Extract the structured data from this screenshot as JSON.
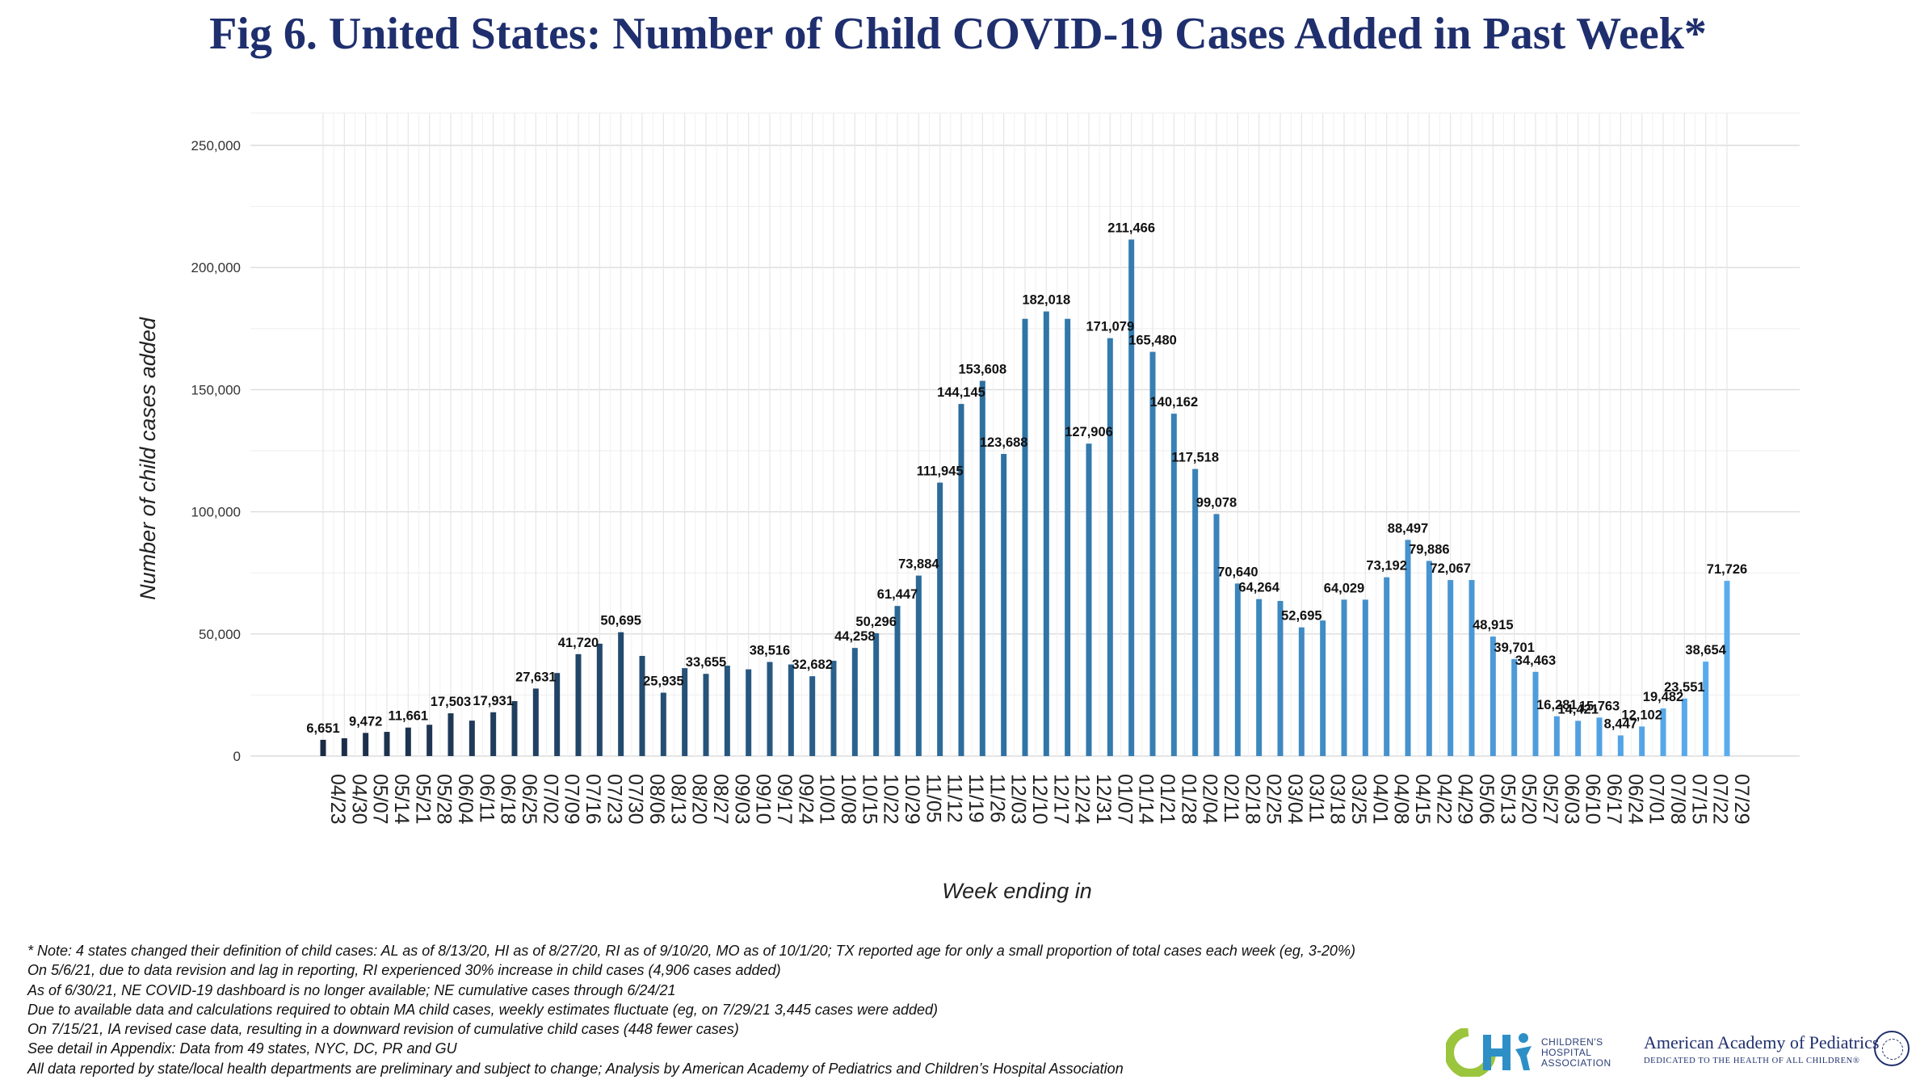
{
  "title": "Fig 6. United States: Number of Child COVID-19 Cases Added in Past Week*",
  "chart_data": {
    "type": "bar",
    "xlabel": "Week ending in",
    "ylabel": "Number of child cases added",
    "ylim": [
      0,
      250000
    ],
    "yticks": [
      0,
      50000,
      100000,
      150000,
      200000,
      250000
    ],
    "grid": true,
    "legend": "none",
    "categories": [
      "04/23",
      "04/30",
      "05/07",
      "05/14",
      "05/21",
      "05/28",
      "06/04",
      "06/11",
      "06/18",
      "06/25",
      "07/02",
      "07/09",
      "07/16",
      "07/23",
      "07/30",
      "08/06",
      "08/13",
      "08/20",
      "08/27",
      "09/03",
      "09/10",
      "09/17",
      "09/24",
      "10/01",
      "10/08",
      "10/15",
      "10/22",
      "10/29",
      "11/05",
      "11/12",
      "11/19",
      "11/26",
      "12/03",
      "12/10",
      "12/17",
      "12/24",
      "12/31",
      "01/07",
      "01/14",
      "01/21",
      "01/28",
      "02/04",
      "02/11",
      "02/18",
      "02/25",
      "03/04",
      "03/11",
      "03/18",
      "03/25",
      "04/01",
      "04/08",
      "04/15",
      "04/22",
      "04/29",
      "05/06",
      "05/13",
      "05/20",
      "05/27",
      "06/03",
      "06/10",
      "06/17",
      "06/24",
      "07/01",
      "07/08",
      "07/15",
      "07/22",
      "07/29"
    ],
    "label_every_other_tick": true,
    "values": [
      6651,
      7300,
      9472,
      9900,
      11661,
      12800,
      17503,
      14500,
      17931,
      22500,
      27631,
      34000,
      41720,
      46000,
      50695,
      41000,
      25935,
      36000,
      33655,
      37000,
      35500,
      38516,
      37500,
      32682,
      39000,
      44258,
      50296,
      61447,
      73884,
      111945,
      144145,
      153608,
      123688,
      179000,
      182018,
      179000,
      127906,
      171079,
      211466,
      165480,
      140162,
      117518,
      99078,
      70640,
      64264,
      63500,
      52695,
      55500,
      64029,
      64029,
      73192,
      88497,
      79886,
      72067,
      72067,
      48915,
      39701,
      34463,
      16281,
      14421,
      15763,
      8447,
      12102,
      19482,
      23551,
      38654,
      71726
    ],
    "data_labels": [
      "6,651",
      "",
      "9,472",
      "",
      "11,661",
      "",
      "17,503",
      "",
      "17,931",
      "",
      "27,631",
      "",
      "41,720",
      "",
      "50,695",
      "",
      "25,935",
      "",
      "33,655",
      "",
      "",
      "38,516",
      "",
      "32,682",
      "",
      "44,258",
      "50,296",
      "61,447",
      "73,884",
      "111,945",
      "144,145",
      "153,608",
      "123,688",
      "",
      "182,018",
      "",
      "127,906",
      "171,079",
      "211,466",
      "165,480",
      "140,162",
      "117,518",
      "99,078",
      "70,640",
      "64,264",
      "",
      "52,695",
      "",
      "64,029",
      "",
      "73,192",
      "88,497",
      "79,886",
      "72,067",
      "",
      "48,915",
      "39,701",
      "34,463",
      "16,281",
      "14,421",
      "15,763",
      "8,447",
      "12,102",
      "19,482",
      "23,551",
      "38,654",
      "71,726"
    ],
    "bar_color_start": "#1b2b45",
    "bar_color_mid": "#2f74a6",
    "bar_color_end": "#5aacef"
  },
  "notes": [
    "* Note: 4 states changed their definition of child cases: AL as of 8/13/20, HI as of 8/27/20, RI as of 9/10/20, MO as of 10/1/20; TX reported age for only a small proportion of total cases each week (eg, 3-20%)",
    "On 5/6/21, due to data revision and lag in reporting, RI experienced 30% increase in child cases (4,906 cases added)",
    "As of 6/30/21, NE COVID-19 dashboard is no longer available; NE cumulative cases through 6/24/21",
    "Due to available data and calculations required to obtain MA child cases, weekly estimates fluctuate (eg, on 7/29/21 3,445 cases were added)",
    "On 7/15/21, IA revised case data, resulting in a downward revision of cumulative child cases (448 fewer cases)",
    "See detail in Appendix: Data from 49 states, NYC, DC, PR and GU",
    "All data reported by state/local health departments are preliminary and subject to change; Analysis by American Academy of Pediatrics and Children’s Hospital Association"
  ],
  "logos": {
    "cha_lines": [
      "CHILDREN'S",
      "HOSPITAL",
      "ASSOCIATION"
    ],
    "aap_name": "American Academy of Pediatrics",
    "aap_tagline": "DEDICATED TO THE HEALTH OF ALL CHILDREN®"
  }
}
